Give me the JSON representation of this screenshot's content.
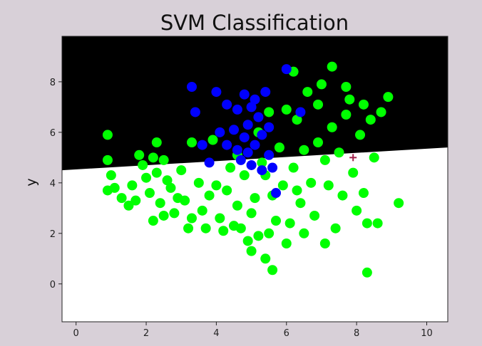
{
  "chart_data": {
    "type": "scatter",
    "title": "SVM Classification",
    "xlabel": "",
    "ylabel": "y",
    "xlim": [
      -0.4,
      10.6
    ],
    "ylim": [
      -1.5,
      9.8
    ],
    "xticks": [
      0,
      2,
      4,
      6,
      8,
      10
    ],
    "yticks": [
      0,
      2,
      4,
      6,
      8
    ],
    "grid": false,
    "decision_boundary": {
      "x": [
        -0.4,
        10.6
      ],
      "y": [
        4.5,
        5.4
      ],
      "above_color": "#000000",
      "below_color": "#ffffff"
    },
    "series": [
      {
        "color": "#00ff00",
        "points": [
          [
            0.9,
            5.9
          ],
          [
            0.9,
            4.9
          ],
          [
            1.0,
            4.3
          ],
          [
            1.1,
            3.8
          ],
          [
            0.9,
            3.7
          ],
          [
            1.3,
            3.4
          ],
          [
            1.5,
            3.1
          ],
          [
            1.6,
            3.9
          ],
          [
            1.7,
            3.3
          ],
          [
            1.8,
            5.1
          ],
          [
            1.9,
            4.7
          ],
          [
            2.0,
            4.2
          ],
          [
            2.1,
            3.6
          ],
          [
            2.2,
            5.0
          ],
          [
            2.3,
            4.4
          ],
          [
            2.4,
            3.2
          ],
          [
            2.5,
            2.7
          ],
          [
            2.2,
            2.5
          ],
          [
            2.3,
            5.6
          ],
          [
            2.5,
            4.9
          ],
          [
            2.6,
            4.1
          ],
          [
            2.7,
            3.8
          ],
          [
            2.8,
            2.8
          ],
          [
            2.9,
            3.4
          ],
          [
            3.0,
            4.5
          ],
          [
            3.1,
            3.3
          ],
          [
            3.2,
            2.2
          ],
          [
            3.3,
            2.6
          ],
          [
            3.3,
            5.6
          ],
          [
            3.5,
            4.0
          ],
          [
            3.6,
            2.9
          ],
          [
            3.7,
            2.2
          ],
          [
            3.8,
            3.5
          ],
          [
            3.9,
            5.7
          ],
          [
            4.0,
            3.9
          ],
          [
            4.1,
            2.6
          ],
          [
            4.2,
            2.1
          ],
          [
            4.3,
            3.7
          ],
          [
            4.4,
            4.6
          ],
          [
            4.5,
            2.3
          ],
          [
            4.6,
            3.1
          ],
          [
            4.7,
            2.2
          ],
          [
            4.8,
            4.3
          ],
          [
            4.9,
            1.7
          ],
          [
            5.0,
            2.8
          ],
          [
            5.0,
            1.3
          ],
          [
            5.1,
            3.4
          ],
          [
            5.2,
            1.9
          ],
          [
            5.2,
            6.0
          ],
          [
            5.3,
            4.8
          ],
          [
            5.4,
            1.0
          ],
          [
            5.5,
            2.0
          ],
          [
            5.5,
            6.8
          ],
          [
            5.6,
            3.5
          ],
          [
            5.6,
            0.55
          ],
          [
            5.7,
            2.5
          ],
          [
            5.8,
            5.4
          ],
          [
            5.9,
            3.9
          ],
          [
            6.0,
            1.6
          ],
          [
            6.0,
            6.9
          ],
          [
            6.1,
            2.4
          ],
          [
            6.2,
            4.6
          ],
          [
            6.2,
            8.4
          ],
          [
            6.3,
            6.5
          ],
          [
            6.4,
            3.2
          ],
          [
            6.5,
            5.3
          ],
          [
            6.5,
            2.0
          ],
          [
            6.6,
            7.6
          ],
          [
            6.7,
            4.0
          ],
          [
            6.8,
            2.7
          ],
          [
            6.9,
            5.6
          ],
          [
            7.0,
            7.9
          ],
          [
            7.1,
            1.6
          ],
          [
            7.2,
            3.9
          ],
          [
            7.3,
            6.2
          ],
          [
            7.3,
            8.6
          ],
          [
            7.4,
            2.2
          ],
          [
            7.5,
            5.2
          ],
          [
            7.6,
            3.5
          ],
          [
            7.7,
            6.7
          ],
          [
            7.8,
            7.3
          ],
          [
            7.9,
            4.4
          ],
          [
            8.0,
            2.9
          ],
          [
            8.1,
            5.9
          ],
          [
            8.2,
            3.6
          ],
          [
            8.2,
            7.1
          ],
          [
            8.3,
            2.4
          ],
          [
            8.3,
            0.45
          ],
          [
            8.4,
            6.5
          ],
          [
            8.5,
            5.0
          ],
          [
            8.6,
            2.4
          ],
          [
            8.7,
            6.8
          ],
          [
            8.9,
            7.4
          ],
          [
            9.2,
            3.2
          ],
          [
            7.7,
            7.8
          ],
          [
            6.9,
            7.1
          ],
          [
            4.6,
            5.1
          ],
          [
            5.4,
            4.3
          ],
          [
            6.3,
            3.7
          ],
          [
            7.1,
            4.9
          ]
        ]
      },
      {
        "color": "#0000ff",
        "points": [
          [
            3.3,
            7.8
          ],
          [
            3.4,
            6.8
          ],
          [
            3.6,
            5.5
          ],
          [
            3.8,
            4.8
          ],
          [
            4.0,
            7.6
          ],
          [
            4.1,
            6.0
          ],
          [
            4.3,
            5.5
          ],
          [
            4.3,
            7.1
          ],
          [
            4.5,
            6.1
          ],
          [
            4.6,
            5.3
          ],
          [
            4.6,
            6.9
          ],
          [
            4.7,
            4.9
          ],
          [
            4.8,
            7.5
          ],
          [
            4.8,
            5.8
          ],
          [
            4.9,
            6.3
          ],
          [
            5.0,
            4.7
          ],
          [
            5.0,
            7.0
          ],
          [
            5.1,
            5.5
          ],
          [
            5.2,
            6.6
          ],
          [
            5.3,
            4.5
          ],
          [
            5.3,
            5.9
          ],
          [
            5.4,
            7.6
          ],
          [
            5.5,
            5.1
          ],
          [
            5.5,
            6.2
          ],
          [
            5.6,
            4.6
          ],
          [
            5.7,
            3.6
          ],
          [
            6.0,
            8.5
          ],
          [
            6.4,
            6.8
          ],
          [
            4.9,
            5.2
          ],
          [
            5.1,
            7.3
          ]
        ]
      }
    ],
    "markers": [
      {
        "symbol": "+",
        "x": 7.9,
        "y": 5.0,
        "color": "#a0204a"
      }
    ]
  }
}
